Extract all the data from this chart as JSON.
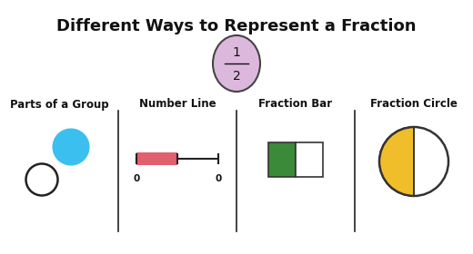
{
  "title": "Different Ways to Represent a Fraction",
  "title_fontsize": 13,
  "fraction_numerator": "1",
  "fraction_denominator": "2",
  "fraction_ellipse_color": "#ddb8dd",
  "fraction_ellipse_edge": "#444444",
  "section_labels": [
    "Parts of a Group",
    "Number Line",
    "Fraction Bar",
    "Fraction Circle"
  ],
  "section_label_fontsize": 8.5,
  "bg_color": "#ffffff",
  "circle_filled_color": "#3bbfef",
  "circle_empty_edge": "#222222",
  "number_line_color": "#222222",
  "number_line_filled_color": "#e06070",
  "fraction_bar_filled_color": "#3a8a3a",
  "fraction_bar_empty_color": "#ffffff",
  "fraction_bar_edge_color": "#333333",
  "fraction_circle_filled_color": "#f0be2a",
  "fraction_circle_edge_color": "#333333",
  "divider_color": "#222222"
}
